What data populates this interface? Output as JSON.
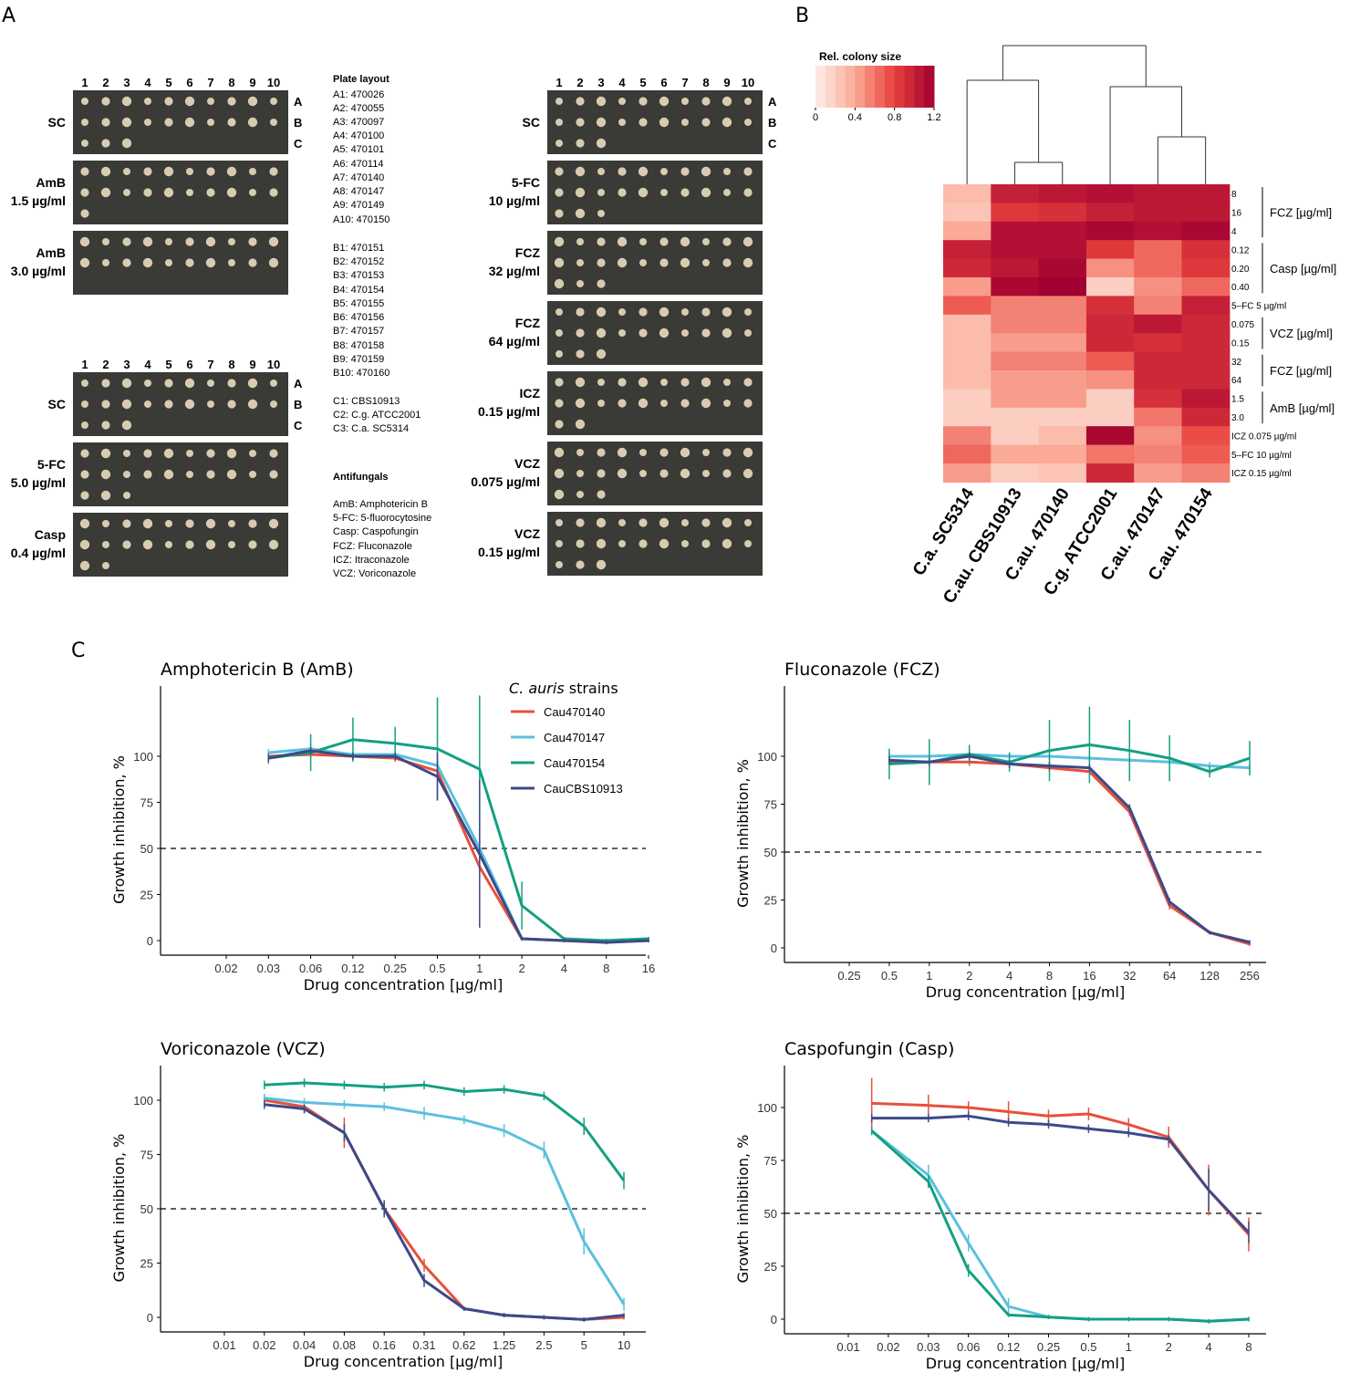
{
  "panels": {
    "a": "A",
    "b": "B",
    "c": "C"
  },
  "spot_assays": {
    "col_numbers": [
      "1",
      "2",
      "3",
      "4",
      "5",
      "6",
      "7",
      "8",
      "9",
      "10"
    ],
    "row_letters": [
      "A",
      "B",
      "C"
    ],
    "left_top_group": [
      {
        "label1": "SC",
        "label2": "",
        "rows": [
          10,
          10,
          3
        ],
        "show_abc": true
      },
      {
        "label1": "AmB",
        "label2": "1.5 µg/ml",
        "rows": [
          10,
          10,
          1
        ],
        "show_abc": false
      },
      {
        "label1": "AmB",
        "label2": "3.0 µg/ml",
        "rows": [
          10,
          10,
          0
        ],
        "show_abc": false
      }
    ],
    "left_bottom_group": [
      {
        "label1": "SC",
        "label2": "",
        "rows": [
          10,
          10,
          3
        ],
        "show_abc": true
      },
      {
        "label1": "5-FC",
        "label2": "5.0 µg/ml",
        "rows": [
          10,
          10,
          3
        ],
        "show_abc": false
      },
      {
        "label1": "Casp",
        "label2": "0.4 µg/ml",
        "rows": [
          10,
          10,
          2
        ],
        "show_abc": false
      }
    ],
    "right_group": [
      {
        "label1": "SC",
        "label2": "",
        "rows": [
          10,
          10,
          3
        ],
        "show_abc": true
      },
      {
        "label1": "5-FC",
        "label2": "10 µg/ml",
        "rows": [
          10,
          10,
          3
        ],
        "show_abc": false
      },
      {
        "label1": "FCZ",
        "label2": "32 µg/ml",
        "rows": [
          10,
          10,
          3
        ],
        "show_abc": false
      },
      {
        "label1": "FCZ",
        "label2": "64 µg/ml",
        "rows": [
          10,
          10,
          3
        ],
        "show_abc": false
      },
      {
        "label1": "ICZ",
        "label2": "0.15 µg/ml",
        "rows": [
          10,
          10,
          2
        ],
        "show_abc": false
      },
      {
        "label1": "VCZ",
        "label2": "0.075 µg/ml",
        "rows": [
          10,
          10,
          3
        ],
        "show_abc": false
      },
      {
        "label1": "VCZ",
        "label2": "0.15 µg/ml",
        "rows": [
          10,
          10,
          3
        ],
        "show_abc": false
      }
    ]
  },
  "legend": {
    "plate_layout_title": "Plate layout",
    "plate_lines_a": [
      "A1:   470026",
      "A2:   470055",
      "A3:   470097",
      "A4:   470100",
      "A5:   470101",
      "A6:   470114",
      "A7:   470140",
      "A8:   470147",
      "A9:   470149",
      "A10: 470150"
    ],
    "plate_lines_b": [
      "B1:   470151",
      "B2:   470152",
      "B3:   470153",
      "B4:   470154",
      "B5:   470155",
      "B6:   470156",
      "B7:   470157",
      "B8:   470158",
      "B9:   470159",
      "B10: 470160"
    ],
    "plate_lines_c": [
      "C1:  CBS10913",
      "C2:  C.g. ATCC2001",
      "C3:  C.a. SC5314"
    ],
    "antifungals_title": "Antifungals",
    "antifungal_lines": [
      "AmB: Amphotericin B",
      "5-FC: 5-fluorocytosine",
      "Casp: Caspofungin",
      "FCZ: Fluconazole",
      "ICZ: Itraconazole",
      "VCZ: Voriconazole"
    ]
  },
  "heatmap": {
    "title": "Rel. colony size",
    "scale_ticks": [
      "0",
      "0.4",
      "0.8",
      "1.2"
    ],
    "scale_max": 1.2,
    "columns": [
      "C.a. SC5314",
      "C.au. CBS10913",
      "C.au. 470140",
      "C.g. ATCC2001",
      "C.au. 470147",
      "C.au. 470154"
    ],
    "rows": [
      "8",
      "16",
      "4",
      "0.12",
      "0.20",
      "0.40",
      "5–FC 5 µg/ml",
      "0.075",
      "0.15",
      "32",
      "64",
      "1.5",
      "3.0",
      "ICZ 0.075 µg/ml",
      "5–FC 10 µg/ml",
      "ICZ 0.15 µg/ml"
    ],
    "values": [
      [
        0.3,
        1.0,
        1.05,
        1.1,
        1.05,
        1.05
      ],
      [
        0.25,
        0.85,
        0.9,
        1.0,
        1.05,
        1.05
      ],
      [
        0.4,
        1.1,
        1.1,
        1.15,
        1.1,
        1.15
      ],
      [
        1.0,
        1.1,
        1.1,
        0.85,
        0.65,
        0.9
      ],
      [
        0.95,
        1.05,
        1.15,
        0.5,
        0.65,
        0.85
      ],
      [
        0.45,
        1.15,
        1.2,
        0.2,
        0.5,
        0.65
      ],
      [
        0.7,
        0.55,
        0.55,
        0.9,
        0.55,
        1.0
      ],
      [
        0.3,
        0.55,
        0.55,
        0.95,
        1.05,
        0.95
      ],
      [
        0.3,
        0.45,
        0.45,
        0.95,
        0.9,
        0.95
      ],
      [
        0.3,
        0.55,
        0.55,
        0.7,
        0.95,
        0.95
      ],
      [
        0.3,
        0.45,
        0.45,
        0.5,
        0.95,
        0.95
      ],
      [
        0.2,
        0.45,
        0.45,
        0.2,
        0.9,
        1.05
      ],
      [
        0.2,
        0.2,
        0.2,
        0.2,
        0.6,
        0.95
      ],
      [
        0.55,
        0.2,
        0.3,
        1.15,
        0.5,
        0.75
      ],
      [
        0.65,
        0.4,
        0.4,
        0.6,
        0.55,
        0.7
      ],
      [
        0.45,
        0.2,
        0.25,
        0.95,
        0.45,
        0.55
      ]
    ],
    "groups": [
      {
        "label": "FCZ [µg/ml]",
        "from": 0,
        "to": 2
      },
      {
        "label": "Casp [µg/ml]",
        "from": 3,
        "to": 5
      },
      {
        "label": "VCZ [µg/ml]",
        "from": 7,
        "to": 8
      },
      {
        "label": "FCZ [µg/ml]",
        "from": 9,
        "to": 10
      },
      {
        "label": "AmB [µg/ml]",
        "from": 11,
        "to": 12
      }
    ]
  },
  "chart_data": [
    {
      "type": "line",
      "title": "Amphotericin B (AmB)",
      "xlabel": "Drug concentration [µg/ml]",
      "ylabel": "Growth inhibition, %",
      "x_ticks": [
        "0.02",
        "0.03",
        "0.06",
        "0.12",
        "0.25",
        "0.5",
        "1",
        "2",
        "4",
        "8",
        "16"
      ],
      "y_ticks": [
        0,
        25,
        50,
        75,
        100
      ],
      "ylim": [
        -4,
        130
      ],
      "threshold": 50,
      "series": [
        {
          "name": "Cau470140",
          "x": [
            0.03,
            0.06,
            0.12,
            0.25,
            0.5,
            1,
            2,
            4,
            8,
            16
          ],
          "values": [
            100,
            101,
            100,
            99,
            92,
            40,
            1,
            0,
            -1,
            0
          ],
          "err": [
            2,
            2,
            2,
            2,
            3,
            6,
            1,
            1,
            1,
            1
          ]
        },
        {
          "name": "Cau470147",
          "x": [
            0.03,
            0.06,
            0.12,
            0.25,
            0.5,
            1,
            2,
            4,
            8,
            16
          ],
          "values": [
            102,
            104,
            101,
            101,
            95,
            50,
            1,
            0,
            0,
            1
          ],
          "err": [
            2,
            3,
            2,
            2,
            3,
            5,
            1,
            1,
            1,
            1
          ]
        },
        {
          "name": "Cau470154",
          "x": [
            0.03,
            0.06,
            0.12,
            0.25,
            0.5,
            1,
            2,
            4,
            8,
            16
          ],
          "values": [
            99,
            102,
            109,
            107,
            104,
            93,
            19,
            1,
            0,
            1
          ],
          "err": [
            3,
            10,
            12,
            9,
            28,
            40,
            13,
            1,
            1,
            1
          ]
        },
        {
          "name": "CauCBS10913",
          "x": [
            0.03,
            0.06,
            0.12,
            0.25,
            0.5,
            1,
            2,
            4,
            8,
            16
          ],
          "values": [
            99,
            103,
            100,
            100,
            89,
            47,
            1,
            0,
            -1,
            0
          ],
          "err": [
            2,
            2,
            2,
            2,
            13,
            40,
            1,
            1,
            1,
            1
          ]
        }
      ],
      "legend": {
        "title_italic": "C. auris",
        "title_rest": " strains"
      }
    },
    {
      "type": "line",
      "title": "Fluconazole (FCZ)",
      "xlabel": "Drug concentration [µg/ml]",
      "ylabel": "Growth inhibition, %",
      "x_ticks": [
        "0.25",
        "0.5",
        "1",
        "2",
        "4",
        "8",
        "16",
        "32",
        "64",
        "128",
        "256"
      ],
      "y_ticks": [
        0,
        25,
        50,
        75,
        100
      ],
      "ylim": [
        -4,
        130
      ],
      "threshold": 50,
      "series": [
        {
          "name": "Cau470140",
          "x": [
            0.5,
            1,
            2,
            4,
            8,
            16,
            32,
            64,
            128,
            256
          ],
          "values": [
            97,
            97,
            97,
            96,
            94,
            92,
            71,
            22,
            8,
            2
          ],
          "err": [
            2,
            2,
            2,
            2,
            2,
            2,
            2,
            2,
            1,
            1
          ]
        },
        {
          "name": "Cau470147",
          "x": [
            0.5,
            1,
            2,
            4,
            8,
            16,
            32,
            64,
            128,
            256
          ],
          "values": [
            100,
            100,
            101,
            100,
            100,
            99,
            98,
            97,
            95,
            94
          ],
          "err": [
            2,
            2,
            2,
            2,
            2,
            2,
            2,
            2,
            2,
            2
          ]
        },
        {
          "name": "Cau470154",
          "x": [
            0.5,
            1,
            2,
            4,
            8,
            16,
            32,
            64,
            128,
            256
          ],
          "values": [
            96,
            97,
            101,
            97,
            103,
            106,
            103,
            99,
            92,
            99
          ],
          "err": [
            8,
            12,
            5,
            5,
            16,
            20,
            16,
            12,
            3,
            9
          ]
        },
        {
          "name": "CauCBS10913",
          "x": [
            0.5,
            1,
            2,
            4,
            8,
            16,
            32,
            64,
            128,
            256
          ],
          "values": [
            98,
            97,
            100,
            96,
            95,
            94,
            73,
            24,
            8,
            3
          ],
          "err": [
            2,
            2,
            2,
            2,
            2,
            2,
            2,
            2,
            1,
            1
          ]
        }
      ]
    },
    {
      "type": "line",
      "title": "Voriconazole (VCZ)",
      "xlabel": "Drug concentration [µg/ml]",
      "ylabel": "Growth inhibition, %",
      "x_ticks": [
        "0.01",
        "0.02",
        "0.04",
        "0.08",
        "0.16",
        "0.31",
        "0.62",
        "1.25",
        "2.5",
        "5",
        "10"
      ],
      "y_ticks": [
        0,
        25,
        50,
        75,
        100
      ],
      "ylim": [
        -4,
        118
      ],
      "threshold": 50,
      "series": [
        {
          "name": "Cau470140",
          "x": [
            0.02,
            0.04,
            0.08,
            0.16,
            0.31,
            0.62,
            1.25,
            2.5,
            5,
            10
          ],
          "values": [
            100,
            97,
            85,
            50,
            24,
            4,
            1,
            0,
            -1,
            0
          ],
          "err": [
            2,
            3,
            7,
            3,
            3,
            1,
            1,
            1,
            1,
            1
          ]
        },
        {
          "name": "Cau470147",
          "x": [
            0.02,
            0.04,
            0.08,
            0.16,
            0.31,
            0.62,
            1.25,
            2.5,
            5,
            10
          ],
          "values": [
            101,
            99,
            98,
            97,
            94,
            91,
            86,
            77,
            35,
            6
          ],
          "err": [
            2,
            2,
            2,
            2,
            3,
            2,
            3,
            4,
            6,
            3
          ]
        },
        {
          "name": "Cau470154",
          "x": [
            0.02,
            0.04,
            0.08,
            0.16,
            0.31,
            0.62,
            1.25,
            2.5,
            5,
            10
          ],
          "values": [
            107,
            108,
            107,
            106,
            107,
            104,
            105,
            102,
            88,
            63
          ],
          "err": [
            2,
            2,
            2,
            2,
            2,
            2,
            2,
            2,
            4,
            4
          ]
        },
        {
          "name": "CauCBS10913",
          "x": [
            0.02,
            0.04,
            0.08,
            0.16,
            0.31,
            0.62,
            1.25,
            2.5,
            5,
            10
          ],
          "values": [
            98,
            96,
            85,
            50,
            17,
            4,
            1,
            0,
            -1,
            1
          ],
          "err": [
            2,
            2,
            4,
            4,
            3,
            1,
            1,
            1,
            1,
            1
          ]
        }
      ]
    },
    {
      "type": "line",
      "title": "Caspofungin (Casp)",
      "xlabel": "Drug concentration [µg/ml]",
      "ylabel": "Growth inhibition, %",
      "x_ticks": [
        "0.01",
        "0.02",
        "0.03",
        "0.06",
        "0.12",
        "0.25",
        "0.5",
        "1",
        "2",
        "4",
        "8"
      ],
      "y_ticks": [
        0,
        25,
        50,
        75,
        100
      ],
      "ylim": [
        -4,
        118
      ],
      "threshold": 50,
      "series": [
        {
          "name": "Cau470140",
          "x": [
            0.015,
            0.03,
            0.06,
            0.12,
            0.25,
            0.5,
            1,
            2,
            4,
            8
          ],
          "values": [
            102,
            101,
            100,
            98,
            96,
            97,
            92,
            86,
            61,
            40
          ],
          "err": [
            12,
            5,
            3,
            5,
            3,
            3,
            3,
            5,
            12,
            8
          ]
        },
        {
          "name": "Cau470147",
          "x": [
            0.015,
            0.03,
            0.06,
            0.12,
            0.25,
            0.5,
            1,
            2,
            4,
            8
          ],
          "values": [
            89,
            68,
            36,
            6,
            1,
            0,
            0,
            0,
            -1,
            0
          ],
          "err": [
            2,
            5,
            4,
            4,
            1,
            1,
            1,
            1,
            1,
            1
          ]
        },
        {
          "name": "Cau470154",
          "x": [
            0.015,
            0.03,
            0.06,
            0.12,
            0.25,
            0.5,
            1,
            2,
            4,
            8
          ],
          "values": [
            89,
            65,
            23,
            2,
            1,
            0,
            0,
            0,
            -1,
            0
          ],
          "err": [
            2,
            3,
            3,
            1,
            1,
            1,
            1,
            1,
            1,
            1
          ]
        },
        {
          "name": "CauCBS10913",
          "x": [
            0.015,
            0.03,
            0.06,
            0.12,
            0.25,
            0.5,
            1,
            2,
            4,
            8
          ],
          "values": [
            95,
            95,
            96,
            93,
            92,
            90,
            88,
            85,
            61,
            41
          ],
          "err": [
            2,
            2,
            2,
            2,
            2,
            2,
            2,
            2,
            10,
            5
          ]
        }
      ]
    }
  ],
  "series_colors": {
    "Cau470140": "#e8503a",
    "Cau470147": "#5bc0de",
    "Cau470154": "#14a082",
    "CauCBS10913": "#3b4a8a"
  }
}
